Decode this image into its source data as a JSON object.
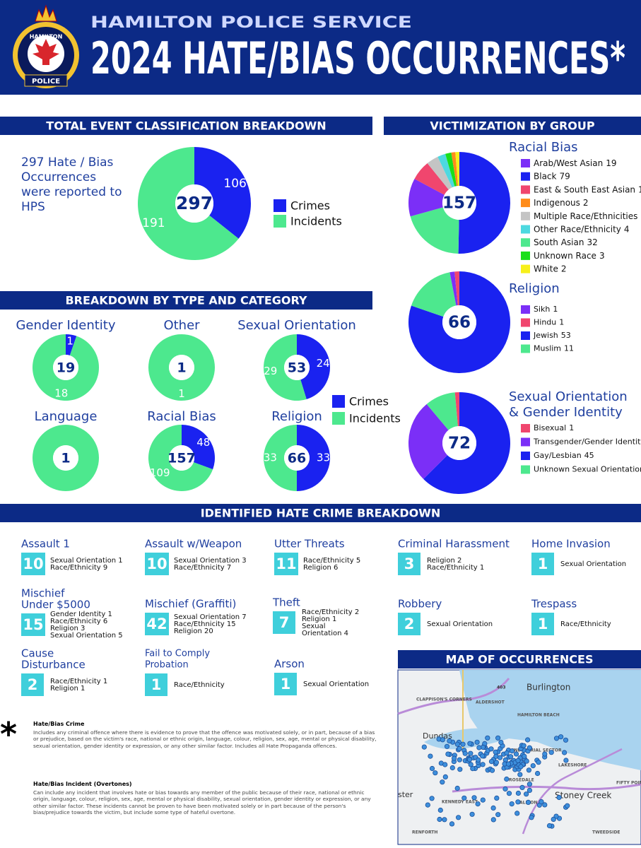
{
  "header": {
    "org": "HAMILTON POLICE SERVICE",
    "title": "2024 HATE/BIAS OCCURRENCES*",
    "logo_top": "HAMILTON",
    "logo_bottom": "POLICE"
  },
  "sections": {
    "classification": "TOTAL EVENT CLASSIFICATION BREAKDOWN",
    "victimization": "VICTIMIZATION BY GROUP",
    "type_category": "BREAKDOWN BY TYPE AND CATEGORY",
    "crime_breakdown": "IDENTIFIED HATE CRIME BREAKDOWN",
    "map": "MAP OF OCCURRENCES"
  },
  "intro": "297 Hate / Bias Occurrences were reported to HPS",
  "chart_data": [
    {
      "type": "donut",
      "total": 297,
      "categories": [
        "Crimes",
        "Incidents"
      ],
      "values": [
        106,
        191
      ],
      "colors": [
        "#1a22f0",
        "#4de88e"
      ],
      "slice_labels": true
    },
    {
      "type": "donut",
      "title": "Gender Identity",
      "total": 19,
      "categories": [
        "Crimes",
        "Incidents"
      ],
      "values": [
        1,
        18
      ],
      "colors": [
        "#1a22f0",
        "#4de88e"
      ],
      "slice_labels": true
    },
    {
      "type": "donut",
      "title": "Other",
      "total": 1,
      "categories": [
        "Crimes",
        "Incidents"
      ],
      "values": [
        0,
        1
      ],
      "colors": [
        "#1a22f0",
        "#4de88e"
      ],
      "slice_labels": true
    },
    {
      "type": "donut",
      "title": "Sexual Orientation",
      "total": 53,
      "categories": [
        "Crimes",
        "Incidents"
      ],
      "values": [
        24,
        29
      ],
      "colors": [
        "#1a22f0",
        "#4de88e"
      ],
      "slice_labels": true
    },
    {
      "type": "donut",
      "title": "Language",
      "total": 1,
      "categories": [
        "Crimes",
        "Incidents"
      ],
      "values": [
        0,
        1
      ],
      "colors": [
        "#1a22f0",
        "#4de88e"
      ],
      "slice_labels": false
    },
    {
      "type": "donut",
      "title": "Racial Bias",
      "total": 157,
      "categories": [
        "Crimes",
        "Incidents"
      ],
      "values": [
        48,
        109
      ],
      "colors": [
        "#1a22f0",
        "#4de88e"
      ],
      "slice_labels": true
    },
    {
      "type": "donut",
      "title": "Religion",
      "total": 66,
      "categories": [
        "Crimes",
        "Incidents"
      ],
      "values": [
        33,
        33
      ],
      "colors": [
        "#1a22f0",
        "#4de88e"
      ],
      "slice_labels": true
    },
    {
      "type": "donut",
      "title": "Racial Bias",
      "total": 157,
      "categories": [
        "Arab/West Asian",
        "Black",
        "East & South East Asian",
        "Indigenous",
        "Multiple Race/Ethnicities",
        "Other Race/Ethnicity",
        "South Asian",
        "Unknown Race",
        "White"
      ],
      "values": [
        19,
        79,
        10,
        2,
        6,
        4,
        32,
        3,
        2
      ],
      "colors": [
        "#7b2ff7",
        "#1a22f0",
        "#f0466e",
        "#ff8c1a",
        "#c4c4c4",
        "#4dd9e0",
        "#4de88e",
        "#1adf1a",
        "#f7f01a"
      ],
      "slice_labels": false
    },
    {
      "type": "donut",
      "title": "Religion",
      "total": 66,
      "categories": [
        "Sikh",
        "Hindu",
        "Jewish",
        "Muslim"
      ],
      "values": [
        1,
        1,
        53,
        11
      ],
      "colors": [
        "#7b2ff7",
        "#f0466e",
        "#1a22f0",
        "#4de88e"
      ],
      "slice_labels": false
    },
    {
      "type": "donut",
      "title": [
        "Sexual Orientation",
        "& Gender Identity"
      ],
      "total": 72,
      "categories": [
        "Bisexual",
        "Transgender/Gender Identity",
        "Gay/Lesbian",
        "Unknown Sexual Orientation"
      ],
      "values": [
        1,
        19,
        45,
        7
      ],
      "colors": [
        "#f0466e",
        "#7b2ff7",
        "#1a22f0",
        "#4de88e"
      ],
      "slice_labels": false
    }
  ],
  "crimes": [
    {
      "title": [
        "Assault 1"
      ],
      "count": 10,
      "details": [
        "Sexual Orientation 1",
        "Race/Ethnicity 9"
      ]
    },
    {
      "title": [
        "Assault w/Weapon"
      ],
      "count": 10,
      "details": [
        "Sexual Orientation 3",
        "Race/Ethnicity 7"
      ]
    },
    {
      "title": [
        "Utter Threats"
      ],
      "count": 11,
      "details": [
        "Race/Ethnicity 5",
        "Religion 6"
      ]
    },
    {
      "title": [
        "Criminal Harassment"
      ],
      "count": 3,
      "details": [
        "Religion 2",
        "Race/Ethnicity 1"
      ]
    },
    {
      "title": [
        "Home Invasion"
      ],
      "count": 1,
      "details": [
        "Sexual Orientation"
      ]
    },
    {
      "title": [
        "Mischief",
        "Under $5000"
      ],
      "count": 15,
      "details": [
        "Gender Identity 1",
        "Race/Ethnicity  6",
        "Religion 3",
        "Sexual Orientation 5"
      ]
    },
    {
      "title": [
        "Mischief (Graffiti)"
      ],
      "count": 42,
      "details": [
        "Sexual Orientation 7",
        "Race/Ethnicity 15",
        "Religion 20"
      ]
    },
    {
      "title": [
        "Theft"
      ],
      "count": 7,
      "details": [
        "Race/Ethnicity 2",
        "Religion 1",
        "Sexual",
        "Orientation 4"
      ]
    },
    {
      "title": [
        "Robbery"
      ],
      "count": 2,
      "details": [
        "Sexual Orientation"
      ]
    },
    {
      "title": [
        "Trespass"
      ],
      "count": 1,
      "details": [
        "Race/Ethnicity"
      ]
    },
    {
      "title": [
        "Cause",
        "Disturbance"
      ],
      "count": 2,
      "details": [
        "Race/Ethnicity 1",
        "Religion 1"
      ]
    },
    {
      "title": [
        "Fail to Comply",
        "Probation"
      ],
      "count": 1,
      "details": [
        "Race/Ethnicity"
      ]
    },
    {
      "title": [
        "Arson"
      ],
      "count": 1,
      "details": [
        "Sexual Orientation"
      ]
    }
  ],
  "map": {
    "labels": [
      "Burlington",
      "Dundas",
      "Stoney Creek",
      "ALDERSHOT",
      "CLAPPISON'S CORNERS",
      "HAMILTON BEACH",
      "INDUSTRIAL SECTOR",
      "LAKESHORE",
      "ROSEDALE",
      "KENNEDY EAST",
      "ALBION",
      "RENFORTH",
      "TWEEDSIDE",
      "FIFTY POINT",
      "ster",
      "403"
    ]
  },
  "notes": {
    "star": "*",
    "crime_title": "Hate/Bias Crime",
    "crime_text": "Includes any criminal offence where there is evidence to prove that the offence was motivated solely, or in part, because of a bias or prejudice, based on the victim's race, national or ethnic origin, language, colour, religion, sex, age, mental or physical disability, sexual orientation, gender identity or expression, or any other similar factor. Includes all Hate Propaganda offences.",
    "incident_title": "Hate/Bias Incident (Overtones)",
    "incident_text": "Can include any incident that involves hate or bias towards any member of the public because of their race, national or ethnic origin, language, colour, religion, sex, age, mental or physical disability, sexual orientation, gender identity or expression, or any other similar factor. These incidents cannot be proven to have been motivated solely or in part because of the person's bias/prejudice towards the victim, but include some type of hateful overtone."
  }
}
